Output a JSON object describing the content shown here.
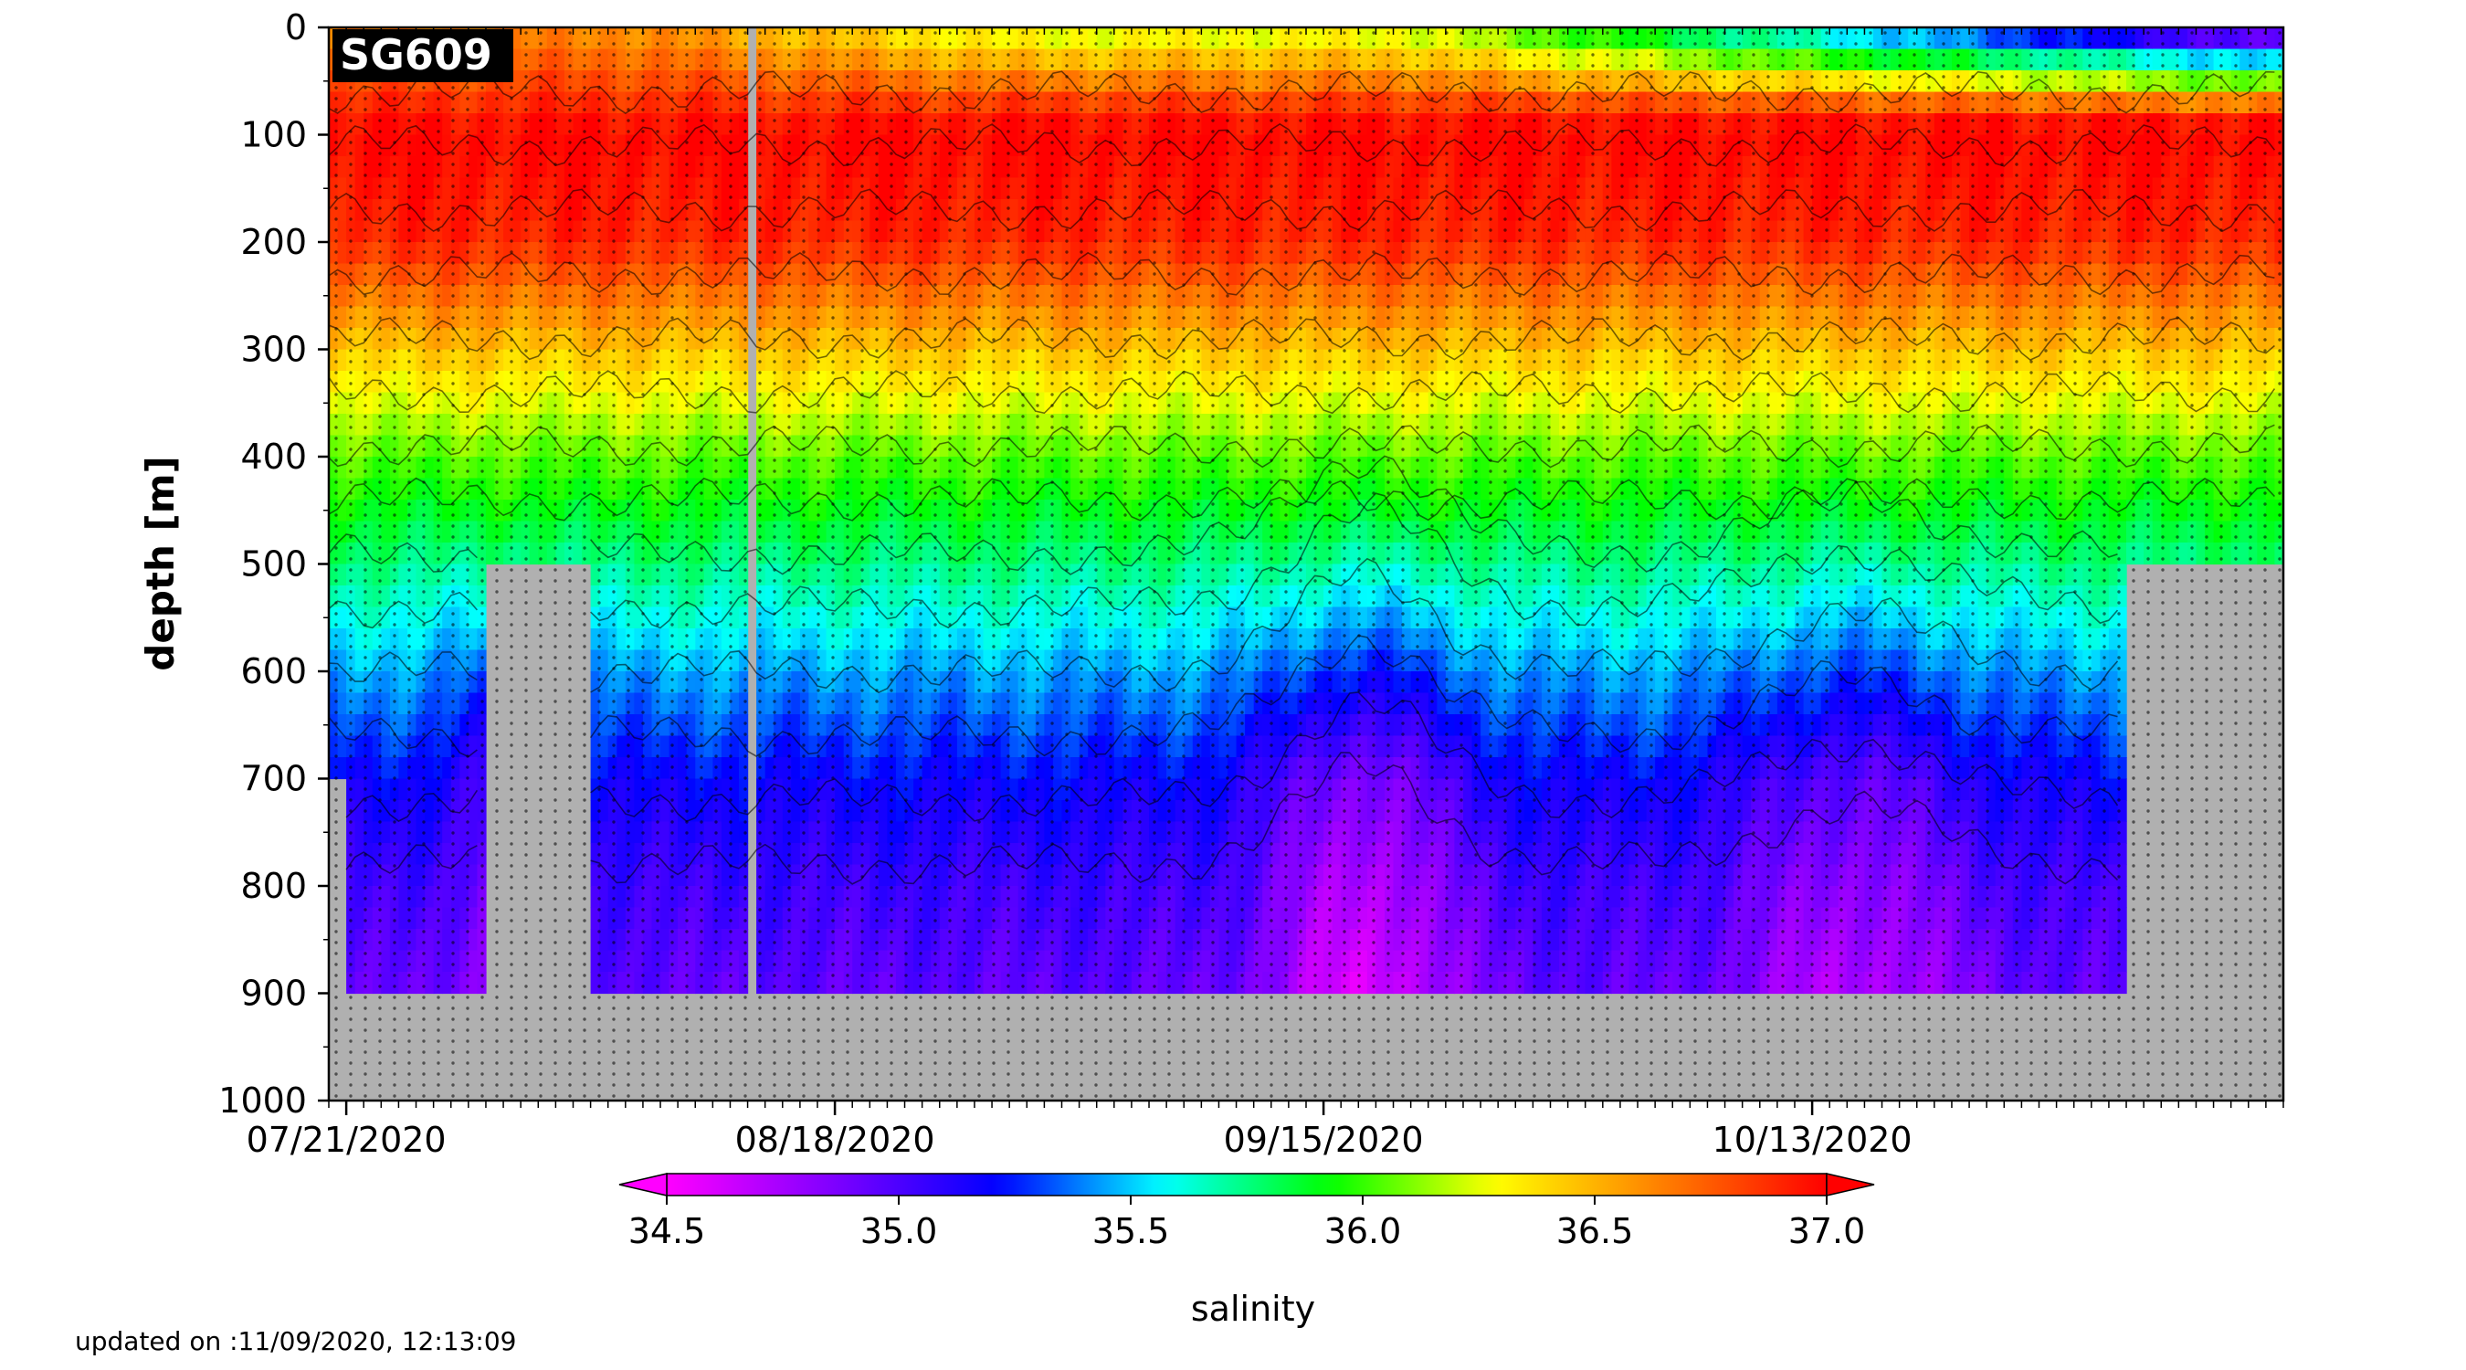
{
  "glider_label": "SG609",
  "updated_text": "updated on :11/09/2020, 12:13:09",
  "chart_data": {
    "type": "heatmap",
    "title": "",
    "ylabel": "depth [m]",
    "xlabel": "",
    "ylim": [
      1000,
      0
    ],
    "y_ticks": [
      0,
      100,
      200,
      300,
      400,
      500,
      600,
      700,
      800,
      900,
      1000
    ],
    "x_range_days": [
      "07/20/2020",
      "11/09/2020"
    ],
    "x_ticks": [
      "07/21/2020",
      "08/18/2020",
      "09/15/2020",
      "10/13/2020"
    ],
    "colorbar": {
      "label": "salinity",
      "min": 34.5,
      "max": 37.0,
      "ticks": [
        "34.5",
        "35.0",
        "35.5",
        "36.0",
        "36.5",
        "37.0"
      ],
      "extend": "both",
      "colormap": [
        "#ff00ff",
        "#7f00ff",
        "#0000ff",
        "#00ffff",
        "#00ff00",
        "#ffff00",
        "#ff8000",
        "#ff0000"
      ]
    },
    "no_data_color": "#b0b0b0",
    "dive_depth_segments": [
      {
        "start": "07/20/2020",
        "end": "07/21/2020",
        "max_depth_m": 700
      },
      {
        "start": "07/21/2020",
        "end": "07/29/2020",
        "max_depth_m": 900
      },
      {
        "start": "07/29/2020",
        "end": "08/04/2020",
        "max_depth_m": 500
      },
      {
        "start": "08/04/2020",
        "end": "10/31/2020",
        "max_depth_m": 900
      },
      {
        "start": "10/31/2020",
        "end": "11/09/2020",
        "max_depth_m": 500
      }
    ],
    "profile_gap": "08/13/2020",
    "salinity_profile_typical": [
      {
        "depth_m": 0,
        "salinity": 36.6
      },
      {
        "depth_m": 50,
        "salinity": 36.8
      },
      {
        "depth_m": 100,
        "salinity": 37.0
      },
      {
        "depth_m": 200,
        "salinity": 36.9
      },
      {
        "depth_m": 300,
        "salinity": 36.45
      },
      {
        "depth_m": 400,
        "salinity": 36.05
      },
      {
        "depth_m": 500,
        "salinity": 35.75
      },
      {
        "depth_m": 600,
        "salinity": 35.45
      },
      {
        "depth_m": 700,
        "salinity": 35.2
      },
      {
        "depth_m": 800,
        "salinity": 35.05
      },
      {
        "depth_m": 900,
        "salinity": 34.95
      }
    ],
    "grid": false,
    "legend": "colorbar-bottom"
  }
}
